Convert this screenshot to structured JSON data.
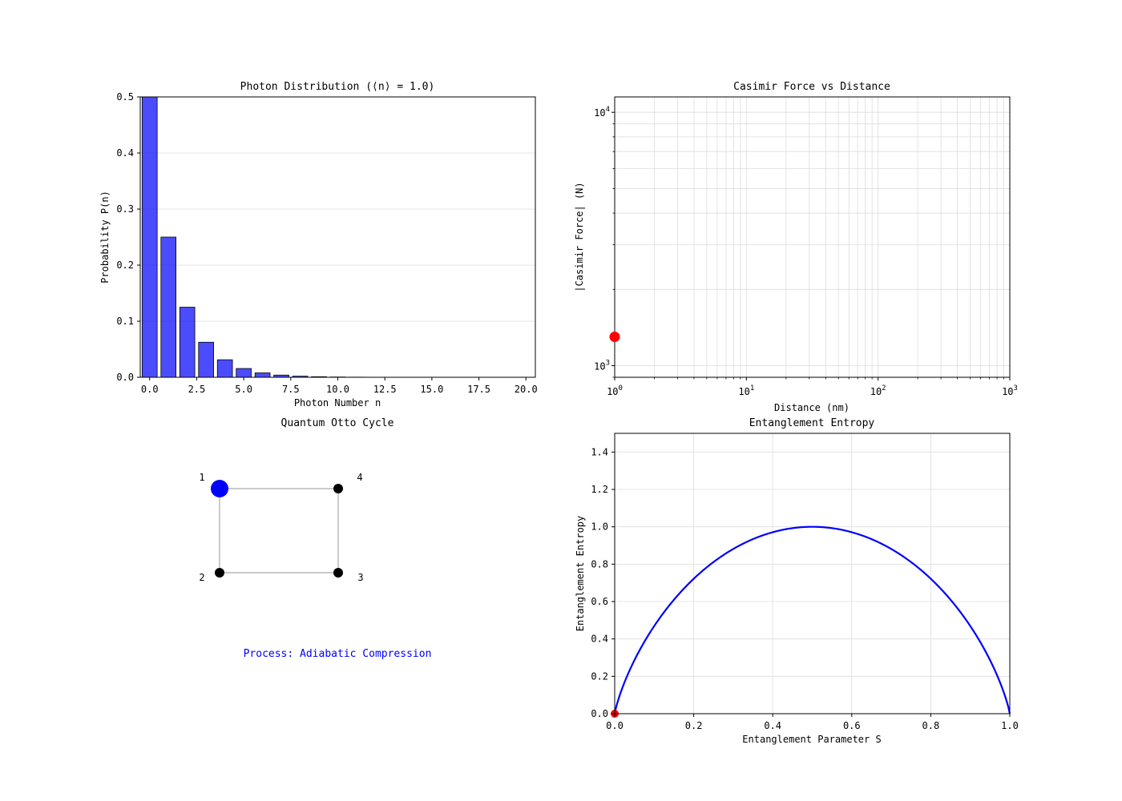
{
  "chart_data": [
    {
      "type": "bar",
      "title": "Photon Distribution (⟨n⟩ = 1.0)",
      "xlabel": "Photon Number n",
      "ylabel": "Probability P(n)",
      "x": [
        0,
        1,
        2,
        3,
        4,
        5,
        6,
        7,
        8,
        9,
        10,
        11,
        12,
        13,
        14,
        15,
        16,
        17,
        18,
        19,
        20
      ],
      "values": [
        0.5,
        0.25,
        0.125,
        0.0625,
        0.03125,
        0.015625,
        0.0078125,
        0.00390625,
        0.001953125,
        0.0009765625,
        0.00048828125,
        0.000244140625,
        0.0001220703125,
        6.103515625e-05,
        3.0517578125e-05,
        1.52587890625e-05,
        7.62939453125e-06,
        3.814697265625e-06,
        1.9073486328125e-06,
        9.5367431640625e-07,
        4.76837158203125e-07
      ],
      "xlim": [
        -0.5,
        20.5
      ],
      "ylim": [
        0,
        0.5
      ],
      "xticks": [
        "0.0",
        "2.5",
        "5.0",
        "7.5",
        "10.0",
        "12.5",
        "15.0",
        "17.5",
        "20.0"
      ],
      "xtick_values": [
        0,
        2.5,
        5,
        7.5,
        10,
        12.5,
        15,
        17.5,
        20
      ],
      "yticks": [
        "0.0",
        "0.1",
        "0.2",
        "0.3",
        "0.4",
        "0.5"
      ],
      "ytick_values": [
        0,
        0.1,
        0.2,
        0.3,
        0.4,
        0.5
      ],
      "grid": "y",
      "color": "#0000ff"
    },
    {
      "type": "scatter",
      "title": "Casimir Force vs Distance",
      "xlabel": "Distance (nm)",
      "ylabel": "|Casimir Force| (N)",
      "xscale": "log",
      "yscale": "log",
      "xlim": [
        1,
        1000
      ],
      "ylim": [
        900,
        11500
      ],
      "xticks": [
        {
          "base": "10",
          "exp": "0"
        },
        {
          "base": "10",
          "exp": "1"
        },
        {
          "base": "10",
          "exp": "2"
        },
        {
          "base": "10",
          "exp": "3"
        }
      ],
      "xtick_values": [
        1,
        10,
        100,
        1000
      ],
      "yticks": [
        {
          "base": "10",
          "exp": "3"
        },
        {
          "base": "10",
          "exp": "4"
        }
      ],
      "ytick_values": [
        1000,
        10000
      ],
      "points": [
        {
          "x": 1,
          "y": 1300
        }
      ],
      "grid": "both",
      "marker_color": "#ff0000"
    },
    {
      "type": "diagram",
      "title": "Quantum Otto Cycle",
      "nodes": [
        {
          "label": "1",
          "active": true
        },
        {
          "label": "2",
          "active": false
        },
        {
          "label": "3",
          "active": false
        },
        {
          "label": "4",
          "active": false
        }
      ],
      "process_text": "Process: Adiabatic Compression",
      "active_color": "#0000ff",
      "edge_color": "#aaaaaa"
    },
    {
      "type": "line",
      "title": "Entanglement Entropy",
      "xlabel": "Entanglement Parameter S",
      "ylabel": "Entanglement Entropy",
      "xlim": [
        0,
        1
      ],
      "ylim": [
        0,
        1.5
      ],
      "xticks": [
        "0.0",
        "0.2",
        "0.4",
        "0.6",
        "0.8",
        "1.0"
      ],
      "xtick_values": [
        0,
        0.2,
        0.4,
        0.6,
        0.8,
        1.0
      ],
      "yticks": [
        "0.0",
        "0.2",
        "0.4",
        "0.6",
        "0.8",
        "1.0",
        "1.2",
        "1.4"
      ],
      "ytick_values": [
        0,
        0.2,
        0.4,
        0.6,
        0.8,
        1.0,
        1.2,
        1.4
      ],
      "series": [
        {
          "function": "binary_entropy",
          "color": "#0000ff"
        }
      ],
      "points": [
        {
          "x": 0,
          "y": 0
        }
      ],
      "marker_color": "#ff0000",
      "grid": "both"
    }
  ]
}
